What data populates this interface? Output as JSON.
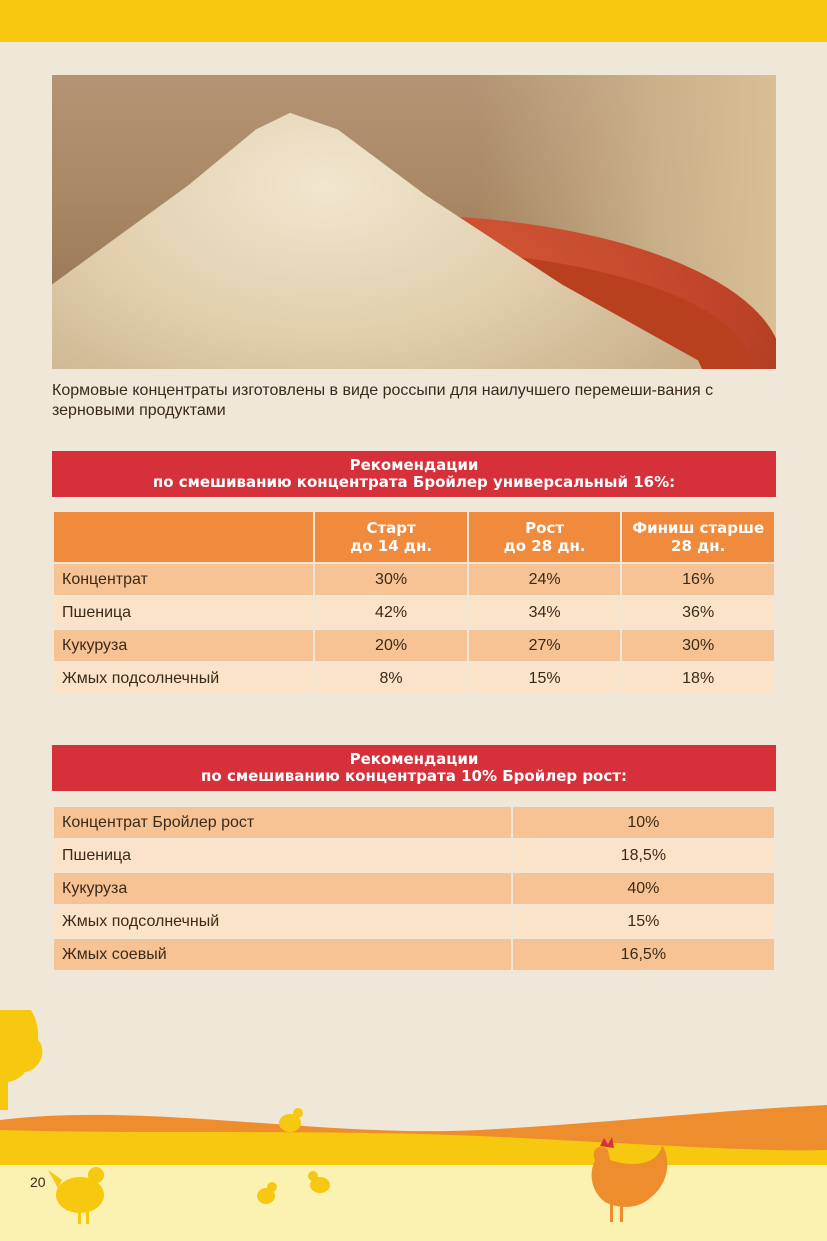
{
  "caption": "Кормовые концентраты изготовлены в виде россыпи для наилучшего перемеши-вания с зерновыми продуктами",
  "table1": {
    "title_line1": "Рекомендации",
    "title_line2": "по смешиванию концентрата Бройлер универсальный 16%:",
    "columns": [
      {
        "line1": "Старт",
        "line2": "до 14 дн."
      },
      {
        "line1": "Рост",
        "line2": "до 28 дн."
      },
      {
        "line1": "Финиш старше",
        "line2": "28 дн."
      }
    ],
    "rows": [
      {
        "label": "Концентрат",
        "values": [
          "30%",
          "24%",
          "16%"
        ]
      },
      {
        "label": "Пшеница",
        "values": [
          "42%",
          "34%",
          "36%"
        ]
      },
      {
        "label": "Кукуруза",
        "values": [
          "20%",
          "27%",
          "30%"
        ]
      },
      {
        "label": "Жмых подсолнечный",
        "values": [
          "8%",
          "15%",
          "18%"
        ]
      }
    ]
  },
  "table2": {
    "title_line1": "Рекомендации",
    "title_line2": "по смешиванию концентрата 10% Бройлер рост:",
    "rows": [
      {
        "label": "Концентрат Бройлер рост",
        "value": "10%"
      },
      {
        "label": "Пшеница",
        "value": "18,5%"
      },
      {
        "label": "Кукуруза",
        "value": "40%"
      },
      {
        "label": "Жмых подсолнечный",
        "value": "15%"
      },
      {
        "label": "Жмых соевый",
        "value": "16,5%"
      }
    ]
  },
  "page_number": "20",
  "colors": {
    "top_bar": "#f6c80f",
    "header_red": "#d6313b",
    "header_orange": "#f08a3c",
    "row_dark": "#f7c394",
    "row_light": "#fbe3c9",
    "background": "#efe8d8"
  }
}
